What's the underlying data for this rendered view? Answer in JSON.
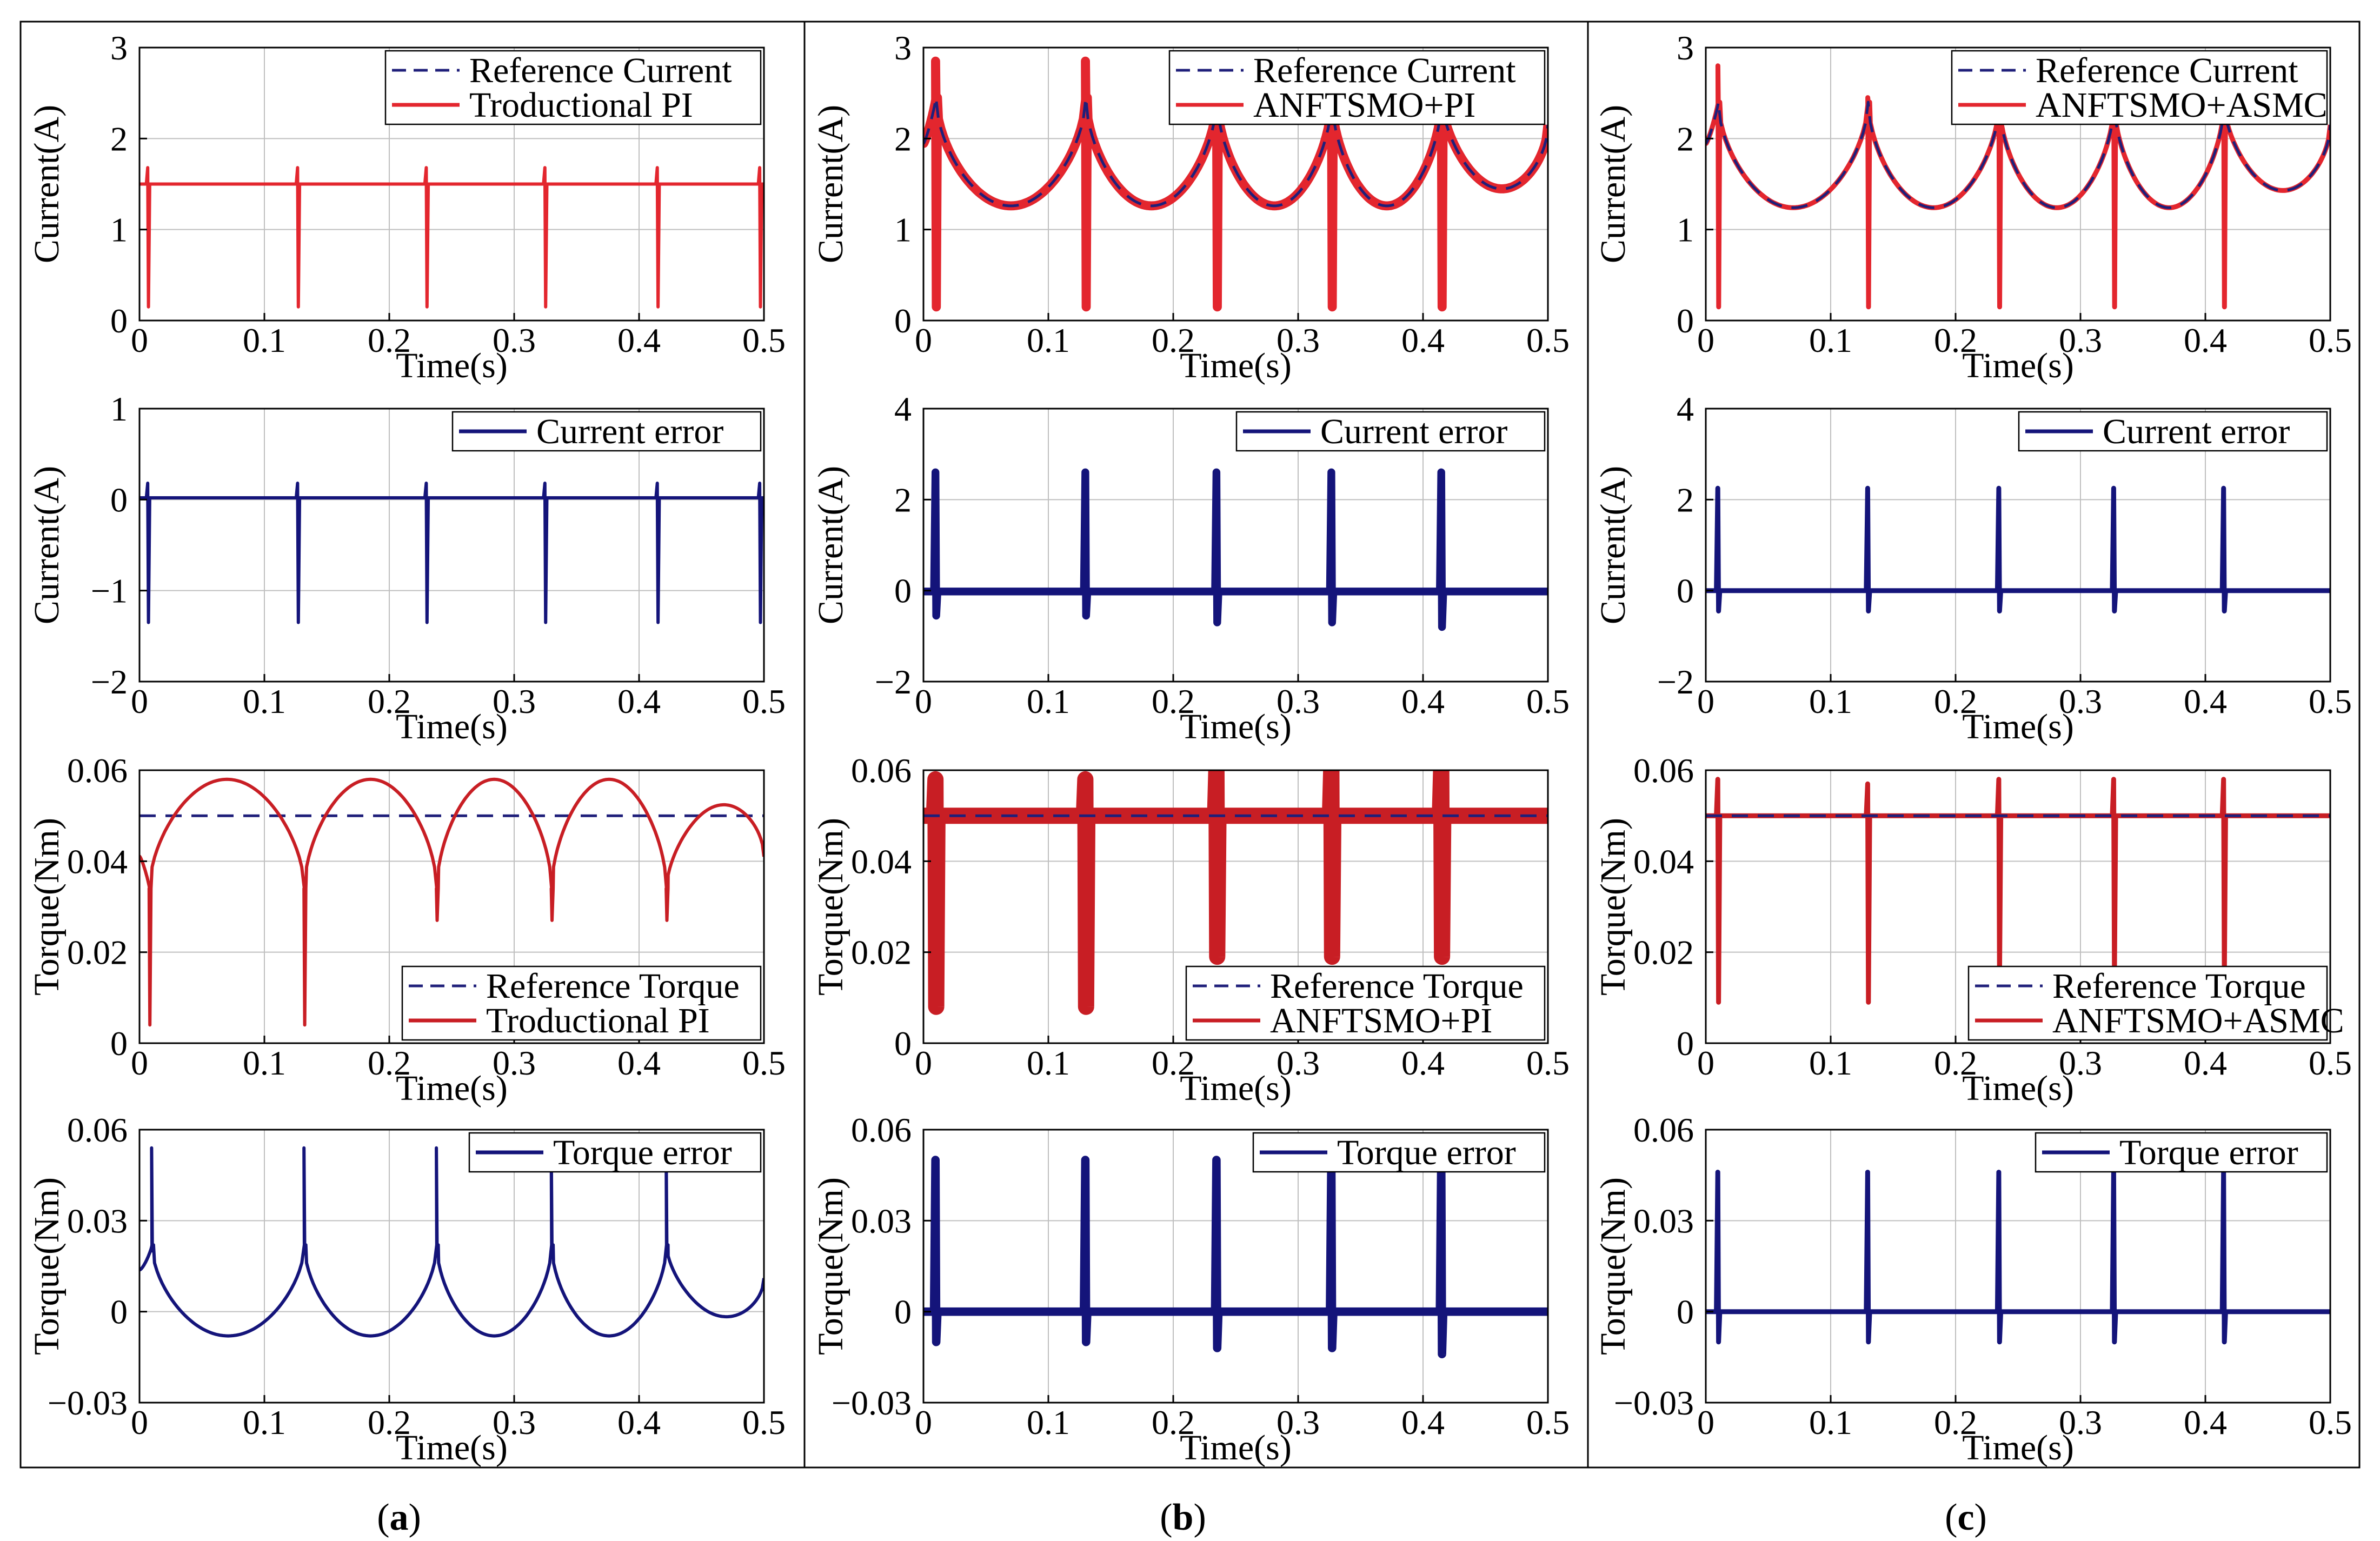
{
  "colors": {
    "reference": "#1f1f7a",
    "response": "#e3262e",
    "torque_response": "#c81e24",
    "error": "#14147a",
    "grid": "#bfbfbf",
    "axis": "#000000"
  },
  "captions": [
    "a",
    "b",
    "c"
  ],
  "chart_data": [
    {
      "id": "a1",
      "column": 0,
      "row": 0,
      "type": "line",
      "xlabel": "Time(s)",
      "ylabel": "Current(A)",
      "xlim": [
        0,
        0.5
      ],
      "ylim": [
        0,
        3
      ],
      "xticks": [
        "0",
        "0.1",
        "0.2",
        "0.3",
        "0.4",
        "0.5"
      ],
      "yticks": [
        "0",
        "1",
        "2",
        "3"
      ],
      "grid": true,
      "legend_position": "top-right",
      "legend": [
        "Reference Current",
        "Troductional PI"
      ],
      "series": [
        {
          "name": "Reference Current",
          "style": "dashed",
          "color_key": "reference",
          "profile": "flat",
          "base": 1.5
        },
        {
          "name": "Troductional PI",
          "style": "solid",
          "color_key": "response",
          "profile": "flat",
          "base": 1.5,
          "spikes": [
            {
              "t": 0.007,
              "up": 1.68,
              "down": 0.15
            },
            {
              "t": 0.127,
              "up": 1.68,
              "down": 0.15
            },
            {
              "t": 0.23,
              "up": 1.68,
              "down": 0.15
            },
            {
              "t": 0.325,
              "up": 1.68,
              "down": 0.15
            },
            {
              "t": 0.415,
              "up": 1.68,
              "down": 0.15
            },
            {
              "t": 0.497,
              "up": 1.68,
              "down": 0.15
            }
          ]
        }
      ]
    },
    {
      "id": "a2",
      "column": 0,
      "row": 1,
      "type": "line",
      "xlabel": "Time(s)",
      "ylabel": "Current(A)",
      "xlim": [
        0,
        0.5
      ],
      "ylim": [
        -2,
        1
      ],
      "xticks": [
        "0",
        "0.1",
        "0.2",
        "0.3",
        "0.4",
        "0.5"
      ],
      "yticks": [
        "−2",
        "−1",
        "0",
        "1"
      ],
      "grid": true,
      "legend_position": "top-right",
      "legend": [
        "Current error"
      ],
      "series": [
        {
          "name": "Current error",
          "style": "solid",
          "color_key": "error",
          "profile": "flat",
          "base": 0.02,
          "spikes": [
            {
              "t": 0.007,
              "up": 0.18,
              "down": -1.35
            },
            {
              "t": 0.127,
              "up": 0.18,
              "down": -1.35
            },
            {
              "t": 0.23,
              "up": 0.18,
              "down": -1.35
            },
            {
              "t": 0.325,
              "up": 0.18,
              "down": -1.35
            },
            {
              "t": 0.415,
              "up": 0.18,
              "down": -1.35
            },
            {
              "t": 0.497,
              "up": 0.18,
              "down": -1.35
            }
          ]
        }
      ]
    },
    {
      "id": "a3",
      "column": 0,
      "row": 2,
      "type": "line",
      "xlabel": "Time(s)",
      "ylabel": "Torque(Nm)",
      "xlim": [
        0,
        0.5
      ],
      "ylim": [
        0,
        0.06
      ],
      "xticks": [
        "0",
        "0.1",
        "0.2",
        "0.3",
        "0.4",
        "0.5"
      ],
      "yticks": [
        "0",
        "0.02",
        "0.04",
        "0.06"
      ],
      "grid": true,
      "legend_position": "bottom-right",
      "legend": [
        "Reference Torque",
        "Troductional PI"
      ],
      "series": [
        {
          "name": "Reference Torque",
          "style": "dashed",
          "color_key": "reference",
          "profile": "flat",
          "base": 0.05
        },
        {
          "name": "Troductional PI",
          "style": "solid",
          "color_key": "torque_response",
          "profile": "arch",
          "start": 0.041,
          "cusp": 0.034,
          "peak": 0.058,
          "end": 0.041,
          "cusps": [
            0.008,
            0.132,
            0.238,
            0.33,
            0.422
          ],
          "spikes": [
            {
              "t": 0.008,
              "up": 0.034,
              "down": 0.004
            },
            {
              "t": 0.132,
              "up": 0.034,
              "down": 0.004
            },
            {
              "t": 0.238,
              "up": 0.034,
              "down": 0.027
            },
            {
              "t": 0.33,
              "up": 0.034,
              "down": 0.027
            },
            {
              "t": 0.422,
              "up": 0.034,
              "down": 0.027
            }
          ]
        }
      ]
    },
    {
      "id": "a4",
      "column": 0,
      "row": 3,
      "type": "line",
      "xlabel": "Time(s)",
      "ylabel": "Torque(Nm)",
      "xlim": [
        0,
        0.5
      ],
      "ylim": [
        -0.03,
        0.06
      ],
      "xticks": [
        "0",
        "0.1",
        "0.2",
        "0.3",
        "0.4",
        "0.5"
      ],
      "yticks": [
        "−0.03",
        "0",
        "0.03",
        "0.06"
      ],
      "grid": true,
      "legend_position": "top-right",
      "legend": [
        "Torque error"
      ],
      "series": [
        {
          "name": "Torque error",
          "style": "solid",
          "color_key": "error",
          "profile": "arch",
          "start": 0.014,
          "cusp": 0.022,
          "peak": -0.008,
          "end": 0.011,
          "cusps": [
            0.01,
            0.132,
            0.238,
            0.33,
            0.422
          ],
          "spikes": [
            {
              "t": 0.01,
              "up": 0.054,
              "down": 0.02
            },
            {
              "t": 0.132,
              "up": 0.054,
              "down": 0.02
            },
            {
              "t": 0.238,
              "up": 0.054,
              "down": 0.02
            },
            {
              "t": 0.33,
              "up": 0.054,
              "down": 0.02
            },
            {
              "t": 0.422,
              "up": 0.054,
              "down": 0.02
            }
          ]
        }
      ]
    },
    {
      "id": "b1",
      "column": 1,
      "row": 0,
      "type": "line",
      "xlabel": "Time(s)",
      "ylabel": "Current(A)",
      "xlim": [
        0,
        0.5
      ],
      "ylim": [
        0,
        3
      ],
      "xticks": [
        "0",
        "0.1",
        "0.2",
        "0.3",
        "0.4",
        "0.5"
      ],
      "yticks": [
        "0",
        "1",
        "2",
        "3"
      ],
      "grid": true,
      "legend_position": "top-right",
      "legend": [
        "Reference Current",
        "ANFTSMO+PI"
      ],
      "series": [
        {
          "name": "ANFTSMO+PI",
          "style": "solid",
          "color_key": "response",
          "width_scale": 2.8,
          "profile": "bowl",
          "start": 1.95,
          "cusp": 2.45,
          "low": 1.26,
          "end": 2.15,
          "cusps": [
            0.01,
            0.13,
            0.235,
            0.327,
            0.415
          ],
          "spikes": [
            {
              "t": 0.01,
              "up": 2.85,
              "down": 0.15
            },
            {
              "t": 0.13,
              "up": 2.85,
              "down": 0.15
            },
            {
              "t": 0.235,
              "up": 2.45,
              "down": 0.15
            },
            {
              "t": 0.327,
              "up": 2.45,
              "down": 0.15
            },
            {
              "t": 0.415,
              "up": 2.45,
              "down": 0.15
            }
          ]
        },
        {
          "name": "Reference Current",
          "style": "dashed",
          "color_key": "reference",
          "profile": "bowl",
          "start": 1.95,
          "cusp": 2.45,
          "low": 1.26,
          "end": 2.15,
          "cusps": [
            0.01,
            0.13,
            0.235,
            0.327,
            0.415
          ]
        }
      ]
    },
    {
      "id": "b2",
      "column": 1,
      "row": 1,
      "type": "line",
      "xlabel": "Time(s)",
      "ylabel": "Current(A)",
      "xlim": [
        0,
        0.5
      ],
      "ylim": [
        -2,
        4
      ],
      "xticks": [
        "0",
        "0.1",
        "0.2",
        "0.3",
        "0.4",
        "0.5"
      ],
      "yticks": [
        "−2",
        "0",
        "2",
        "4"
      ],
      "grid": true,
      "legend_position": "top-right",
      "legend": [
        "Current error"
      ],
      "series": [
        {
          "name": "Current error",
          "style": "solid",
          "color_key": "error",
          "width_scale": 2.4,
          "profile": "flat",
          "base": -0.02,
          "spikes": [
            {
              "t": 0.01,
              "up": 2.6,
              "down": -0.55
            },
            {
              "t": 0.13,
              "up": 2.6,
              "down": -0.55
            },
            {
              "t": 0.235,
              "up": 2.6,
              "down": -0.7
            },
            {
              "t": 0.327,
              "up": 2.6,
              "down": -0.7
            },
            {
              "t": 0.415,
              "up": 2.6,
              "down": -0.8
            }
          ]
        }
      ]
    },
    {
      "id": "b3",
      "column": 1,
      "row": 2,
      "type": "line",
      "xlabel": "Time(s)",
      "ylabel": "Torque(Nm)",
      "xlim": [
        0,
        0.5
      ],
      "ylim": [
        0,
        0.06
      ],
      "xticks": [
        "0",
        "0.1",
        "0.2",
        "0.3",
        "0.4",
        "0.5"
      ],
      "yticks": [
        "0",
        "0.02",
        "0.04",
        "0.06"
      ],
      "grid": true,
      "legend_position": "bottom-right",
      "legend": [
        "Reference Torque",
        "ANFTSMO+PI"
      ],
      "series": [
        {
          "name": "ANFTSMO+PI",
          "style": "solid",
          "color_key": "torque_response",
          "width_scale": 5.0,
          "profile": "flat",
          "base": 0.05,
          "spikes": [
            {
              "t": 0.01,
              "up": 0.058,
              "down": 0.008
            },
            {
              "t": 0.13,
              "up": 0.058,
              "down": 0.008
            },
            {
              "t": 0.235,
              "up": 0.061,
              "down": 0.019
            },
            {
              "t": 0.327,
              "up": 0.061,
              "down": 0.019
            },
            {
              "t": 0.415,
              "up": 0.061,
              "down": 0.019
            }
          ]
        },
        {
          "name": "Reference Torque",
          "style": "dashed",
          "color_key": "reference",
          "profile": "flat",
          "base": 0.05
        }
      ]
    },
    {
      "id": "b4",
      "column": 1,
      "row": 3,
      "type": "line",
      "xlabel": "Time(s)",
      "ylabel": "Torque(Nm)",
      "xlim": [
        0,
        0.5
      ],
      "ylim": [
        -0.03,
        0.06
      ],
      "xticks": [
        "0",
        "0.1",
        "0.2",
        "0.3",
        "0.4",
        "0.5"
      ],
      "yticks": [
        "−0.03",
        "0",
        "0.03",
        "0.06"
      ],
      "grid": true,
      "legend_position": "top-right",
      "legend": [
        "Torque error"
      ],
      "series": [
        {
          "name": "Torque error",
          "style": "solid",
          "color_key": "error",
          "width_scale": 2.6,
          "profile": "flat",
          "base": 0.0,
          "spikes": [
            {
              "t": 0.01,
              "up": 0.05,
              "down": -0.01
            },
            {
              "t": 0.13,
              "up": 0.05,
              "down": -0.01
            },
            {
              "t": 0.235,
              "up": 0.05,
              "down": -0.012
            },
            {
              "t": 0.327,
              "up": 0.05,
              "down": -0.012
            },
            {
              "t": 0.415,
              "up": 0.05,
              "down": -0.014
            }
          ]
        }
      ]
    },
    {
      "id": "c1",
      "column": 2,
      "row": 0,
      "type": "line",
      "xlabel": "Time(s)",
      "ylabel": "Current(A)",
      "xlim": [
        0,
        0.5
      ],
      "ylim": [
        0,
        3
      ],
      "xticks": [
        "0",
        "0.1",
        "0.2",
        "0.3",
        "0.4",
        "0.5"
      ],
      "yticks": [
        "0",
        "1",
        "2",
        "3"
      ],
      "grid": true,
      "legend_position": "top-right",
      "legend": [
        "Reference Current",
        "ANFTSMO+ASMC"
      ],
      "series": [
        {
          "name": "ANFTSMO+ASMC",
          "style": "solid",
          "color_key": "response",
          "width_scale": 1.5,
          "profile": "bowl",
          "start": 1.95,
          "cusp": 2.4,
          "low": 1.24,
          "end": 2.15,
          "cusps": [
            0.01,
            0.13,
            0.235,
            0.327,
            0.415
          ],
          "spikes": [
            {
              "t": 0.01,
              "up": 2.8,
              "down": 0.15
            },
            {
              "t": 0.13,
              "up": 2.45,
              "down": 0.15
            },
            {
              "t": 0.235,
              "up": 2.2,
              "down": 0.15
            },
            {
              "t": 0.327,
              "up": 2.2,
              "down": 0.15
            },
            {
              "t": 0.415,
              "up": 2.2,
              "down": 0.15
            }
          ]
        },
        {
          "name": "Reference Current",
          "style": "dashed",
          "color_key": "reference",
          "profile": "bowl",
          "start": 1.95,
          "cusp": 2.4,
          "low": 1.24,
          "end": 2.15,
          "cusps": [
            0.01,
            0.13,
            0.235,
            0.327,
            0.415
          ]
        }
      ]
    },
    {
      "id": "c2",
      "column": 2,
      "row": 1,
      "type": "line",
      "xlabel": "Time(s)",
      "ylabel": "Current(A)",
      "xlim": [
        0,
        0.5
      ],
      "ylim": [
        -2,
        4
      ],
      "xticks": [
        "0",
        "0.1",
        "0.2",
        "0.3",
        "0.4",
        "0.5"
      ],
      "yticks": [
        "−2",
        "0",
        "2",
        "4"
      ],
      "grid": true,
      "legend_position": "top-right",
      "legend": [
        "Current error"
      ],
      "series": [
        {
          "name": "Current error",
          "style": "solid",
          "color_key": "error",
          "width_scale": 1.5,
          "profile": "flat",
          "base": 0.0,
          "spikes": [
            {
              "t": 0.01,
              "up": 2.25,
              "down": -0.45
            },
            {
              "t": 0.13,
              "up": 2.25,
              "down": -0.45
            },
            {
              "t": 0.235,
              "up": 2.25,
              "down": -0.45
            },
            {
              "t": 0.327,
              "up": 2.25,
              "down": -0.45
            },
            {
              "t": 0.415,
              "up": 2.25,
              "down": -0.45
            }
          ]
        }
      ]
    },
    {
      "id": "c3",
      "column": 2,
      "row": 2,
      "type": "line",
      "xlabel": "Time(s)",
      "ylabel": "Torque(Nm)",
      "xlim": [
        0,
        0.5
      ],
      "ylim": [
        0,
        0.06
      ],
      "xticks": [
        "0",
        "0.1",
        "0.2",
        "0.3",
        "0.4",
        "0.5"
      ],
      "yticks": [
        "0",
        "0.02",
        "0.04",
        "0.06"
      ],
      "grid": true,
      "legend_position": "bottom-right",
      "legend": [
        "Reference Torque",
        "ANFTSMO+ASMC"
      ],
      "series": [
        {
          "name": "ANFTSMO+ASMC",
          "style": "solid",
          "color_key": "torque_response",
          "width_scale": 1.5,
          "profile": "flat",
          "base": 0.05,
          "spikes": [
            {
              "t": 0.01,
              "up": 0.058,
              "down": 0.009
            },
            {
              "t": 0.13,
              "up": 0.057,
              "down": 0.009
            },
            {
              "t": 0.235,
              "up": 0.058,
              "down": 0.014
            },
            {
              "t": 0.327,
              "up": 0.058,
              "down": 0.014
            },
            {
              "t": 0.415,
              "up": 0.058,
              "down": 0.014
            }
          ]
        },
        {
          "name": "Reference Torque",
          "style": "dashed",
          "color_key": "reference",
          "profile": "flat",
          "base": 0.05
        }
      ]
    },
    {
      "id": "c4",
      "column": 2,
      "row": 3,
      "type": "line",
      "xlabel": "Time(s)",
      "ylabel": "Torque(Nm)",
      "xlim": [
        0,
        0.5
      ],
      "ylim": [
        -0.03,
        0.06
      ],
      "xticks": [
        "0",
        "0.1",
        "0.2",
        "0.3",
        "0.4",
        "0.5"
      ],
      "yticks": [
        "−0.03",
        "0",
        "0.03",
        "0.06"
      ],
      "grid": true,
      "legend_position": "top-right",
      "legend": [
        "Torque error"
      ],
      "series": [
        {
          "name": "Torque error",
          "style": "solid",
          "color_key": "error",
          "width_scale": 1.5,
          "profile": "flat",
          "base": 0.0,
          "spikes": [
            {
              "t": 0.01,
              "up": 0.046,
              "down": -0.01
            },
            {
              "t": 0.13,
              "up": 0.046,
              "down": -0.01
            },
            {
              "t": 0.235,
              "up": 0.046,
              "down": -0.01
            },
            {
              "t": 0.327,
              "up": 0.046,
              "down": -0.01
            },
            {
              "t": 0.415,
              "up": 0.046,
              "down": -0.01
            }
          ]
        }
      ]
    }
  ]
}
